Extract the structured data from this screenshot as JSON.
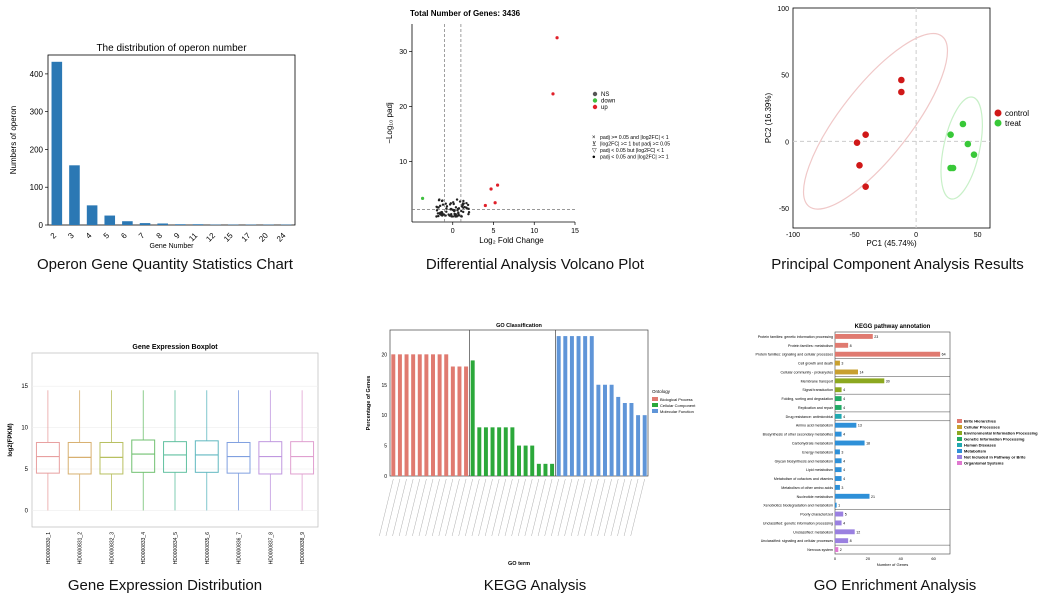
{
  "captions": {
    "operon": "Operon Gene Quantity Statistics Chart",
    "volcano": "Differential Analysis Volcano Plot",
    "pca": "Principal Component Analysis Results",
    "boxplot": "Gene Expression Distribution",
    "kegg": "KEGG Analysis",
    "go": "GO Enrichment Analysis"
  },
  "colors": {
    "bar_blue": "#2b78b4",
    "ns": "#555555",
    "down": "#3fbf3f",
    "up": "#e0202a",
    "control": "#d01818",
    "treat": "#38c838",
    "go_bp": "#e07a70",
    "go_cc": "#2ba83a",
    "go_mf": "#5f95d8",
    "kegg_brite": "#e07a70",
    "kegg_cp": "#c8a030",
    "kegg_eip": "#8ca820",
    "kegg_gip": "#22aa66",
    "kegg_hd": "#20a8b0",
    "kegg_met": "#2e90d8",
    "kegg_notin": "#9a80e0",
    "kegg_org": "#e078d0"
  },
  "chart_data": [
    {
      "id": "operon",
      "type": "bar",
      "title": "The distribution of operon number",
      "xlabel": "Gene Number",
      "ylabel": "Numbers of operon",
      "categories": [
        "2",
        "3",
        "4",
        "5",
        "6",
        "7",
        "8",
        "9",
        "11",
        "12",
        "15",
        "17",
        "20",
        "24"
      ],
      "values": [
        432,
        158,
        52,
        25,
        10,
        5,
        4,
        2,
        2,
        1,
        1,
        1,
        1,
        1
      ],
      "ylim": [
        0,
        450
      ],
      "yticks": [
        0,
        100,
        200,
        300,
        400
      ]
    },
    {
      "id": "volcano",
      "type": "scatter",
      "title": "Total Number of Genes: 3436",
      "xlabel": "Log₂ Fold Change",
      "ylabel": "−Log₁₀ padj",
      "xlim": [
        -5,
        15
      ],
      "ylim": [
        -1,
        35
      ],
      "xticks": [
        0,
        5,
        10,
        15
      ],
      "yticks": [
        10,
        20,
        30
      ],
      "legend": [
        "NS",
        "down",
        "up"
      ],
      "shape_legend": [
        "padj >= 0.05 and |log2FC| < 1",
        "|log2FC| >= 1 but padj >= 0.05",
        "padj < 0.05 but |log2FC| < 1",
        "padj < 0.05 and |log2FC| >= 1"
      ],
      "up_points": [
        [
          12.8,
          32.5
        ],
        [
          12.3,
          22.3
        ],
        [
          5.5,
          5.7
        ],
        [
          4.7,
          5.0
        ],
        [
          4.0,
          2.0
        ],
        [
          5.2,
          2.5
        ]
      ],
      "down_points": [
        [
          -3.7,
          3.3
        ]
      ]
    },
    {
      "id": "pca",
      "type": "scatter",
      "xlabel": "PC1 (45.74%)",
      "ylabel": "PC2 (16.39%)",
      "xlim": [
        -100,
        60
      ],
      "ylim": [
        -65,
        100
      ],
      "xticks": [
        -100,
        -50,
        0,
        50
      ],
      "yticks": [
        -50,
        0,
        50,
        100
      ],
      "series": [
        {
          "name": "control",
          "points": [
            [
              -12,
              46
            ],
            [
              -12,
              37
            ],
            [
              -41,
              5
            ],
            [
              -48,
              -1
            ],
            [
              -46,
              -18
            ],
            [
              -41,
              -34
            ]
          ]
        },
        {
          "name": "treat",
          "points": [
            [
              38,
              13
            ],
            [
              28,
              5
            ],
            [
              42,
              -2
            ],
            [
              47,
              -10
            ],
            [
              28,
              -20
            ],
            [
              30,
              -20
            ]
          ]
        }
      ]
    },
    {
      "id": "boxplot",
      "type": "box",
      "title": "Gene Expression Boxplot",
      "ylabel": "log2(FPKM)",
      "ylim": [
        -2,
        19
      ],
      "yticks": [
        0,
        5,
        10,
        15
      ],
      "categories": [
        "HD0000830_1",
        "HD0000831_2",
        "HD0000832_3",
        "HD0000833_4",
        "HD0000834_5",
        "HD0000835_6",
        "HD0000836_7",
        "HD0000837_8",
        "HD0000838_9"
      ],
      "box_colors": [
        "#e8a0a0",
        "#d8b070",
        "#b8c060",
        "#70c070",
        "#60c0a0",
        "#60b8c0",
        "#80a0e0",
        "#c098e0",
        "#e0a0d0"
      ],
      "boxes": [
        [
          0,
          4.5,
          6.5,
          8.2,
          14.5
        ],
        [
          0,
          4.4,
          6.4,
          8.2,
          14.5
        ],
        [
          0,
          4.4,
          6.4,
          8.2,
          14.5
        ],
        [
          0,
          4.6,
          6.8,
          8.5,
          14.5
        ],
        [
          0,
          4.6,
          6.7,
          8.3,
          14.5
        ],
        [
          0,
          4.6,
          6.7,
          8.4,
          14.5
        ],
        [
          0,
          4.5,
          6.5,
          8.2,
          14.5
        ],
        [
          0,
          4.4,
          6.5,
          8.3,
          14.5
        ],
        [
          0,
          4.4,
          6.5,
          8.3,
          14.5
        ]
      ]
    },
    {
      "id": "kegg_go",
      "type": "bar",
      "title": "GO Classification",
      "xlabel": "GO term",
      "ylabel": "Percentage of Genes",
      "ylim": [
        0,
        24
      ],
      "yticks": [
        0,
        5,
        10,
        15,
        20
      ],
      "legend_title": "Ontology",
      "series": [
        {
          "name": "Biological Process",
          "values": [
            20,
            20,
            20,
            20,
            20,
            20,
            20,
            20,
            20,
            18,
            18,
            18
          ]
        },
        {
          "name": "Cellular Component",
          "values": [
            19,
            8,
            8,
            8,
            8,
            8,
            8,
            5,
            5,
            5,
            2,
            2,
            2
          ]
        },
        {
          "name": "Molecular Function",
          "values": [
            23,
            23,
            23,
            23,
            23,
            23,
            15,
            15,
            15,
            13,
            12,
            12,
            10,
            10
          ]
        }
      ]
    },
    {
      "id": "go_kegg",
      "type": "bar",
      "orientation": "horizontal",
      "title": "KEGG pathway annotation",
      "xlabel": "Number of Genes",
      "xlim": [
        0,
        70
      ],
      "xticks": [
        0,
        20,
        40,
        60
      ],
      "legend": [
        "Brite Hierarchies",
        "Cellular Processes",
        "Environmental Information Processing",
        "Genetic Information Processing",
        "Human Diseases",
        "Metabolism",
        "Not Included in Pathway or Brite",
        "Organismal Systems"
      ],
      "categories": [
        "Protein families: genetic information processing",
        "Protein families: metabolism",
        "Protein families: signaling and cellular processes",
        "Cell growth and death",
        "Cellular community - prokaryotes",
        "Membrane transport",
        "Signal transduction",
        "Folding, sorting and degradation",
        "Replication and repair",
        "Drug resistance: antimicrobial",
        "Amino acid metabolism",
        "Biosynthesis of other secondary metabolites",
        "Carbohydrate metabolism",
        "Energy metabolism",
        "Glycan biosynthesis and metabolism",
        "Lipid metabolism",
        "Metabolism of cofactors and vitamins",
        "Metabolism of other amino acids",
        "Nucleotide metabolism",
        "Xenobiotics biodegradation and metabolism",
        "Poorly characterized",
        "Unclassified: genetic information processing",
        "Unclassified: metabolism",
        "Unclassified: signaling and cellular processes",
        "Nervous system"
      ],
      "values": [
        23,
        8,
        64,
        3,
        14,
        30,
        4,
        4,
        4,
        4,
        13,
        4,
        18,
        3,
        4,
        4,
        4,
        3,
        21,
        1,
        5,
        4,
        12,
        8,
        2
      ],
      "groups": [
        "Brite Hierarchies",
        "Brite Hierarchies",
        "Brite Hierarchies",
        "Cellular Processes",
        "Cellular Processes",
        "Environmental Information Processing",
        "Environmental Information Processing",
        "Genetic Information Processing",
        "Genetic Information Processing",
        "Human Diseases",
        "Metabolism",
        "Metabolism",
        "Metabolism",
        "Metabolism",
        "Metabolism",
        "Metabolism",
        "Metabolism",
        "Metabolism",
        "Metabolism",
        "Metabolism",
        "Not Included in Pathway or Brite",
        "Not Included in Pathway or Brite",
        "Not Included in Pathway or Brite",
        "Not Included in Pathway or Brite",
        "Organismal Systems"
      ]
    }
  ]
}
